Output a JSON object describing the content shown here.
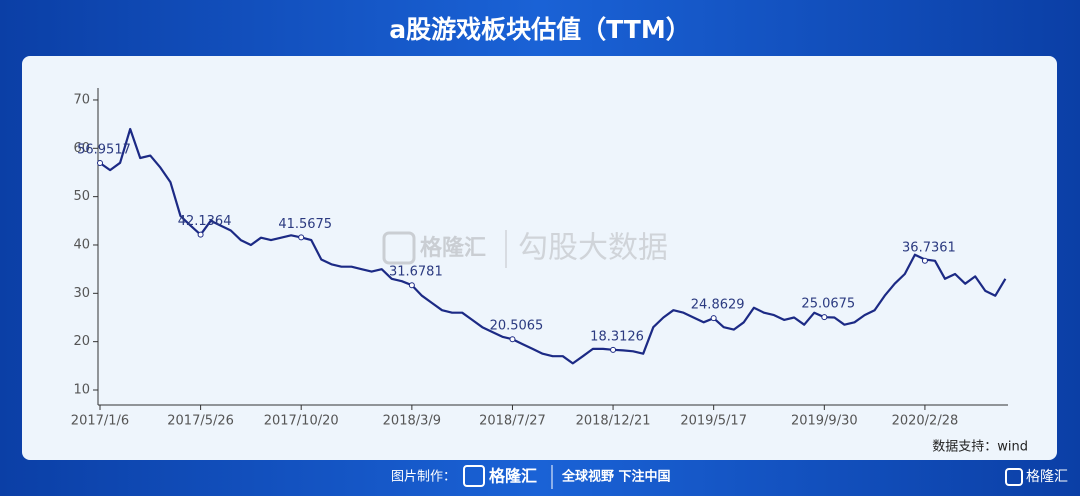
{
  "header": {
    "title": "a股游戏板块估值（TTM）"
  },
  "chart_data": {
    "type": "line",
    "color": "#1c2a85",
    "categories": [
      "2017/1/6",
      null,
      null,
      null,
      null,
      null,
      null,
      null,
      null,
      null,
      "2017/5/26",
      null,
      null,
      null,
      null,
      null,
      null,
      null,
      null,
      null,
      "2017/10/20",
      null,
      null,
      null,
      null,
      null,
      null,
      null,
      null,
      null,
      null,
      "2018/3/9",
      null,
      null,
      null,
      null,
      null,
      null,
      null,
      null,
      null,
      "2018/7/27",
      null,
      null,
      null,
      null,
      null,
      null,
      null,
      null,
      null,
      "2018/12/21",
      null,
      null,
      null,
      null,
      null,
      null,
      null,
      null,
      null,
      "2019/5/17",
      null,
      null,
      null,
      null,
      null,
      null,
      null,
      null,
      null,
      null,
      "2019/9/30",
      null,
      null,
      null,
      null,
      null,
      null,
      null,
      null,
      null,
      "2020/2/28",
      null,
      null,
      null,
      null,
      null,
      null,
      null,
      null
    ],
    "values": [
      56.9517,
      55.5,
      57,
      64,
      58,
      58.5,
      56,
      53,
      46,
      44,
      42.1364,
      45,
      44,
      43,
      41,
      40,
      41.5,
      41,
      41.5,
      42,
      41.5675,
      41,
      37,
      36,
      35.5,
      35.5,
      35,
      34.5,
      35,
      33,
      32.5,
      31.6781,
      29.5,
      28,
      26.5,
      26,
      26,
      24.5,
      23,
      22,
      21,
      20.5065,
      19.5,
      18.5,
      17.5,
      17,
      17,
      15.5,
      17,
      18.5,
      18.5,
      18.3126,
      18.2,
      18,
      17.5,
      23,
      25,
      26.5,
      26,
      25,
      24,
      24.8629,
      23,
      22.5,
      24,
      27,
      26,
      25.5,
      24.5,
      25,
      23.5,
      26,
      25.0675,
      25,
      23.5,
      24,
      25.5,
      26.5,
      29.5,
      32,
      34,
      38,
      37,
      36.7361,
      33,
      34,
      32,
      33.5,
      30.5,
      29.5,
      33
    ],
    "ylim": [
      7,
      72
    ],
    "yticks": [
      10,
      20,
      30,
      40,
      50,
      60,
      70
    ],
    "annotations": [
      {
        "x": "2017/1/6",
        "value": 56.9517
      },
      {
        "x": "2017/5/26",
        "value": 42.1364
      },
      {
        "x": "2017/10/20",
        "value": 41.5675
      },
      {
        "x": "2018/3/9",
        "value": 31.6781
      },
      {
        "x": "2018/7/27",
        "value": 20.5065
      },
      {
        "x": "2018/12/21",
        "value": 18.3126
      },
      {
        "x": "2019/5/17",
        "value": 24.8629
      },
      {
        "x": "2019/9/30",
        "value": 25.0675
      },
      {
        "x": "2020/2/28",
        "value": 36.7361
      }
    ],
    "source": "数据支持：wind"
  },
  "watermark": {
    "logo": "格隆汇",
    "text": "勾股大数据"
  },
  "footer": {
    "label": "图片制作：",
    "logo": "格隆汇",
    "slogan": "全球视野 下注中国",
    "corner_logo": "格隆汇"
  }
}
